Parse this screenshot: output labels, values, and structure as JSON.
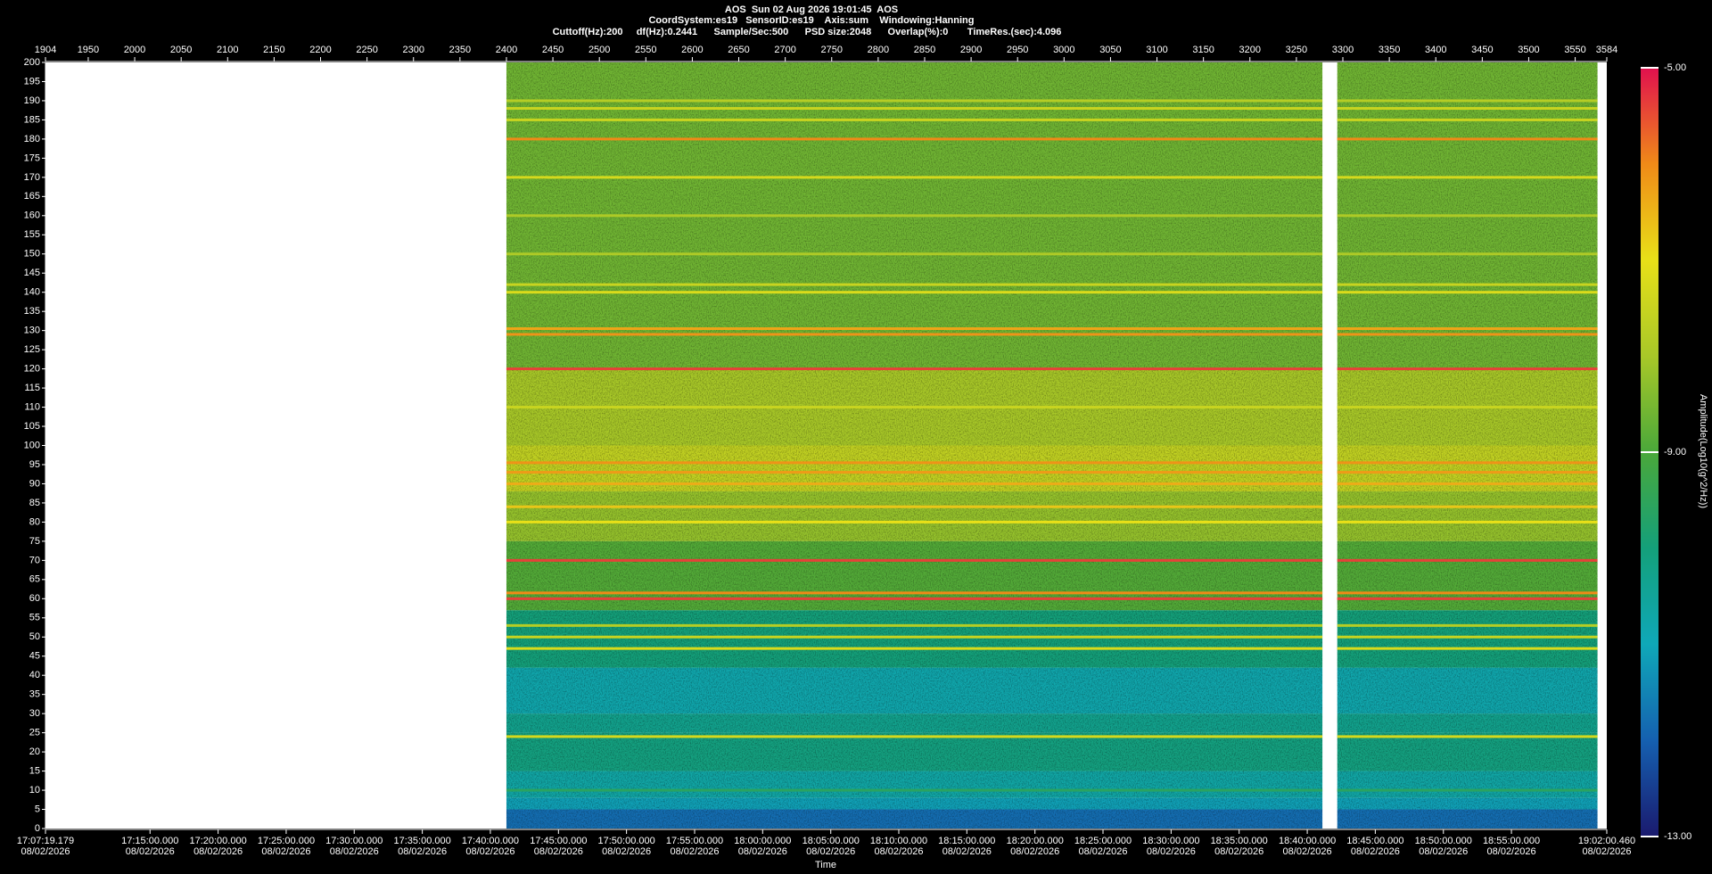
{
  "chart_data": {
    "type": "spectrogram",
    "title_lines": [
      "AOS  Sun 02 Aug 2026 19:01:45  AOS",
      "CoordSystem:es19   SensorID:es19    Axis:sum    Windowing:Hanning",
      "Cuttoff(Hz):200     df(Hz):0.2441      Sample/Sec:500      PSD size:2048      Overlap(%):0       TimeRes.(sec):4.096"
    ],
    "x_label": "Time",
    "date_label": "08/02/2026",
    "xlim": [
      1904,
      3584
    ],
    "xticks": [
      1904,
      1950,
      2000,
      2050,
      2100,
      2150,
      2200,
      2250,
      2300,
      2350,
      2400,
      2450,
      2500,
      2550,
      2600,
      2650,
      2700,
      2750,
      2800,
      2850,
      2900,
      2950,
      3000,
      3050,
      3100,
      3150,
      3200,
      3250,
      3300,
      3350,
      3400,
      3450,
      3500,
      3550,
      3584
    ],
    "time_ticks": [
      {
        "value": 1904,
        "label": "17:07:19.179"
      },
      {
        "value": 2016.5,
        "label": "17:15:00.000"
      },
      {
        "value": 2089.75,
        "label": "17:20:00.000"
      },
      {
        "value": 2163,
        "label": "17:25:00.000"
      },
      {
        "value": 2236.2,
        "label": "17:30:00.000"
      },
      {
        "value": 2309.5,
        "label": "17:35:00.000"
      },
      {
        "value": 2382.7,
        "label": "17:40:00.000"
      },
      {
        "value": 2456,
        "label": "17:45:00.000"
      },
      {
        "value": 2529.2,
        "label": "17:50:00.000"
      },
      {
        "value": 2602.5,
        "label": "17:55:00.000"
      },
      {
        "value": 2675.7,
        "label": "18:00:00.000"
      },
      {
        "value": 2749,
        "label": "18:05:00.000"
      },
      {
        "value": 2822.2,
        "label": "18:10:00.000"
      },
      {
        "value": 2895.4,
        "label": "18:15:00.000"
      },
      {
        "value": 2968.7,
        "label": "18:20:00.000"
      },
      {
        "value": 3041.9,
        "label": "18:25:00.000"
      },
      {
        "value": 3115.2,
        "label": "18:30:00.000"
      },
      {
        "value": 3188.4,
        "label": "18:35:00.000"
      },
      {
        "value": 3261.7,
        "label": "18:40:00.000"
      },
      {
        "value": 3334.9,
        "label": "18:45:00.000"
      },
      {
        "value": 3408.2,
        "label": "18:50:00.000"
      },
      {
        "value": 3481.4,
        "label": "18:55:00.000"
      },
      {
        "value": 3584,
        "label": "19:02:00.460"
      }
    ],
    "ylim": [
      0,
      200
    ],
    "yticks": [
      0,
      5,
      10,
      15,
      20,
      25,
      30,
      35,
      40,
      45,
      50,
      55,
      60,
      65,
      70,
      75,
      80,
      85,
      90,
      95,
      100,
      105,
      110,
      115,
      120,
      125,
      130,
      135,
      140,
      145,
      150,
      155,
      160,
      165,
      170,
      175,
      180,
      185,
      190,
      195,
      200
    ],
    "segments": [
      [
        2400,
        3278
      ],
      [
        3294,
        3574
      ]
    ],
    "bands": [
      {
        "from": 0,
        "to": 5,
        "value": -11.8
      },
      {
        "from": 5,
        "to": 8,
        "value": -11.1
      },
      {
        "from": 8,
        "to": 15,
        "value": -10.7
      },
      {
        "from": 15,
        "to": 25,
        "value": -10.1
      },
      {
        "from": 25,
        "to": 30,
        "value": -10.3
      },
      {
        "from": 30,
        "to": 42,
        "value": -10.8
      },
      {
        "from": 42,
        "to": 57,
        "value": -10
      },
      {
        "from": 57,
        "to": 75,
        "value": -8.9
      },
      {
        "from": 75,
        "to": 88,
        "value": -8.2
      },
      {
        "from": 88,
        "to": 100,
        "value": -7.6
      },
      {
        "from": 100,
        "to": 120,
        "value": -8
      },
      {
        "from": 120,
        "to": 200,
        "value": -8.6
      }
    ],
    "lines": [
      {
        "freq": 10,
        "value": -9.6
      },
      {
        "freq": 24,
        "value": -7.3
      },
      {
        "freq": 47,
        "value": -7.2
      },
      {
        "freq": 50,
        "value": -7.5
      },
      {
        "freq": 53,
        "value": -7.8
      },
      {
        "freq": 60,
        "value": -5.4
      },
      {
        "freq": 61.5,
        "value": -6
      },
      {
        "freq": 70,
        "value": -5.4
      },
      {
        "freq": 80,
        "value": -7
      },
      {
        "freq": 84,
        "value": -6.7
      },
      {
        "freq": 90,
        "value": -6.4
      },
      {
        "freq": 93,
        "value": -6.2
      },
      {
        "freq": 95.5,
        "value": -6.1
      },
      {
        "freq": 110,
        "value": -7.5
      },
      {
        "freq": 120,
        "value": -5.4
      },
      {
        "freq": 129,
        "value": -6.1
      },
      {
        "freq": 130.5,
        "value": -6.3
      },
      {
        "freq": 140,
        "value": -7.2
      },
      {
        "freq": 142,
        "value": -7.5
      },
      {
        "freq": 150,
        "value": -7.9
      },
      {
        "freq": 160,
        "value": -7.9
      },
      {
        "freq": 170,
        "value": -7.3
      },
      {
        "freq": 180,
        "value": -6
      },
      {
        "freq": 185,
        "value": -7.5
      },
      {
        "freq": 188,
        "value": -7.5
      },
      {
        "freq": 190,
        "value": -7.8
      }
    ],
    "clim": [
      -13,
      -5
    ],
    "cticks": [
      {
        "value": -5,
        "label": "-5.00"
      },
      {
        "value": -9,
        "label": "-9.00"
      },
      {
        "value": -13,
        "label": "-13.00"
      }
    ],
    "colorbar_label": "Amplitude(Log10(g^2/Hz))",
    "colormap": [
      "#1a1a6e",
      "#1560b0",
      "#0fa8b8",
      "#14a07a",
      "#4aa83a",
      "#a8c828",
      "#e8e018",
      "#f08a18",
      "#e0104e"
    ],
    "background": "#000000",
    "empty_color": "#ffffff"
  }
}
